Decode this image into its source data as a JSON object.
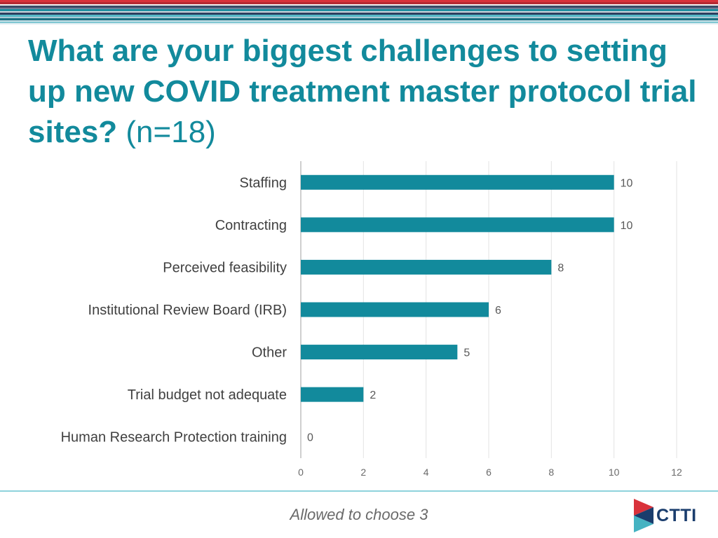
{
  "slide": {
    "title_main": "What are your biggest challenges to setting up new COVID treatment master protocol trial sites?",
    "title_n": "(n=18)",
    "footnote": "Allowed to choose 3",
    "logo_text": "CTTI",
    "colors": {
      "accent": "#128a9c",
      "bar": "#128a9c",
      "logo_red": "#d9323b",
      "logo_navy": "#1a3d6d"
    }
  },
  "chart_data": {
    "type": "bar",
    "orientation": "horizontal",
    "categories": [
      "Staffing",
      "Contracting",
      "Perceived feasibility",
      "Institutional Review Board (IRB)",
      "Other",
      "Trial budget not adequate",
      "Human Research Protection training"
    ],
    "values": [
      10,
      10,
      8,
      6,
      5,
      2,
      0
    ],
    "xlim": [
      0,
      12
    ],
    "xticks": [
      0,
      2,
      4,
      6,
      8,
      10,
      12
    ],
    "grid": true,
    "data_labels": true
  }
}
